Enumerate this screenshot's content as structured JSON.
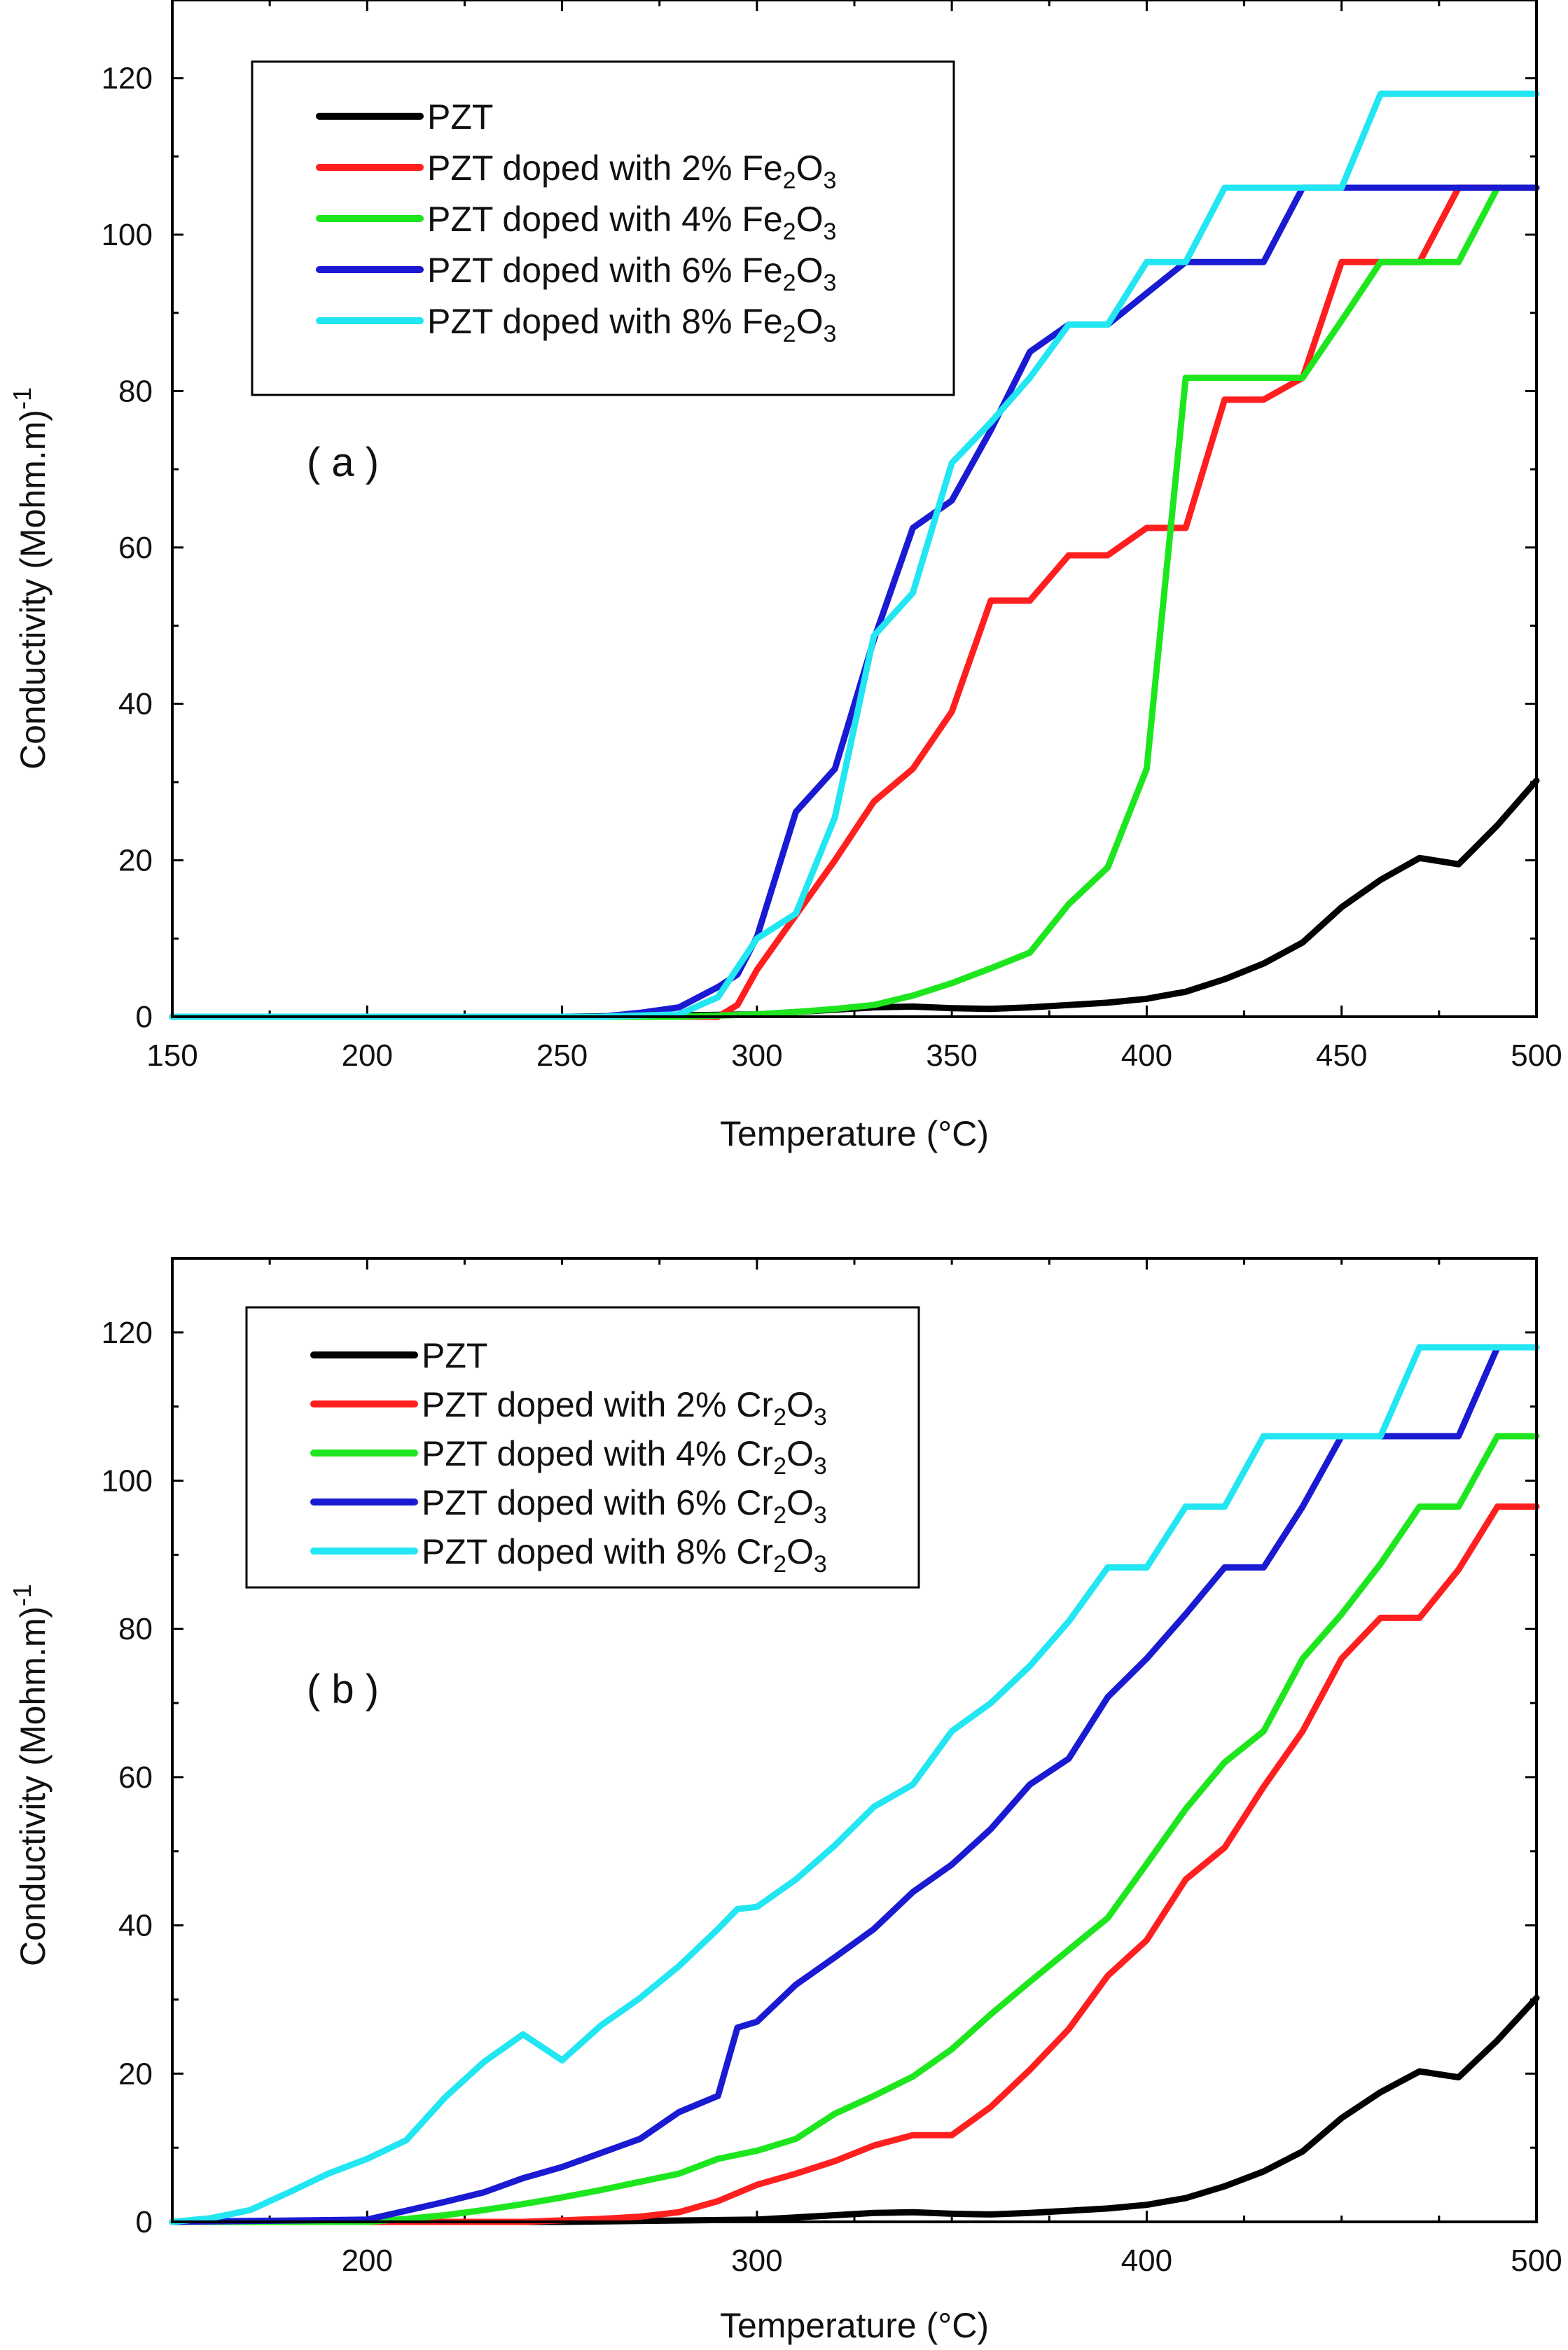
{
  "chart_data": [
    {
      "type": "line",
      "panel_label": "( a )",
      "xlabel": "Temperature (°C)",
      "ylabel": "Conductivity (Mohm.m)",
      "ylabel_sup": "-1",
      "xlim": [
        150,
        500
      ],
      "ylim": [
        0,
        130
      ],
      "xticks": [
        150,
        200,
        250,
        300,
        350,
        400,
        450,
        500
      ],
      "yticks": [
        0,
        20,
        40,
        60,
        80,
        100,
        120
      ],
      "legend_position": "top-left",
      "series": [
        {
          "name": "PZT",
          "label_main": "PZT",
          "color": "#000000",
          "x": [
            150,
            250,
            300,
            310,
            320,
            330,
            340,
            350,
            360,
            370,
            380,
            390,
            400,
            410,
            420,
            430,
            440,
            450,
            460,
            470,
            480,
            490,
            500
          ],
          "y": [
            0,
            0,
            0.3,
            0.6,
            0.9,
            1.2,
            1.3,
            1.1,
            1.0,
            1.2,
            1.5,
            1.8,
            2.3,
            3.2,
            4.8,
            6.8,
            9.5,
            14,
            17.5,
            20.3,
            19.5,
            24.5,
            30.2
          ]
        },
        {
          "name": "PZT doped with 2% Fe2O3",
          "label_main": "PZT doped with 2% Fe",
          "label_sub1": "2",
          "label_mid": "O",
          "label_sub2": "3",
          "color": "#ff1f1f",
          "x": [
            150,
            290,
            295,
            300,
            310,
            320,
            330,
            340,
            350,
            360,
            370,
            380,
            390,
            400,
            410,
            420,
            430,
            440,
            450,
            460,
            470,
            480,
            490,
            500
          ],
          "y": [
            0,
            0,
            1.5,
            6,
            13,
            20,
            27.5,
            31.7,
            39,
            53.2,
            53.2,
            59,
            59,
            62.5,
            62.5,
            78.9,
            78.9,
            81.7,
            96.5,
            96.5,
            96.5,
            106,
            106,
            106
          ]
        },
        {
          "name": "PZT doped with 4% Fe2O3",
          "label_main": "PZT doped with 4% Fe",
          "label_sub1": "2",
          "label_mid": "O",
          "label_sub2": "3",
          "color": "#1ee61e",
          "x": [
            150,
            280,
            300,
            310,
            320,
            330,
            340,
            350,
            360,
            370,
            380,
            390,
            400,
            410,
            420,
            430,
            440,
            450,
            460,
            470,
            480,
            490,
            500
          ],
          "y": [
            0,
            0,
            0.3,
            0.6,
            1.0,
            1.5,
            2.7,
            4.3,
            6.2,
            8.2,
            14.4,
            19.1,
            31.7,
            81.7,
            81.7,
            81.7,
            81.7,
            89,
            96.5,
            96.5,
            96.5,
            106,
            106
          ]
        },
        {
          "name": "PZT doped with 6% Fe2O3",
          "label_main": "PZT doped with 6% Fe",
          "label_sub1": "2",
          "label_mid": "O",
          "label_sub2": "3",
          "color": "#1a1ad2",
          "x": [
            150,
            260,
            270,
            280,
            290,
            295,
            300,
            310,
            320,
            330,
            340,
            350,
            360,
            370,
            380,
            390,
            400,
            410,
            420,
            430,
            440,
            450,
            460,
            470,
            480,
            490,
            500
          ],
          "y": [
            0,
            0,
            0.5,
            1.2,
            3.8,
            5.4,
            10.2,
            26.2,
            31.7,
            48.2,
            62.5,
            66,
            75,
            85,
            88.5,
            88.5,
            92.5,
            96.5,
            96.5,
            96.5,
            106,
            106,
            106,
            106,
            106,
            106,
            106
          ]
        },
        {
          "name": "PZT doped with 8% Fe2O3",
          "label_main": "PZT doped with 8% Fe",
          "label_sub1": "2",
          "label_mid": "O",
          "label_sub2": "3",
          "color": "#22e6f2",
          "x": [
            150,
            260,
            280,
            290,
            300,
            310,
            320,
            330,
            340,
            350,
            360,
            370,
            380,
            390,
            400,
            410,
            420,
            430,
            440,
            450,
            460,
            470,
            480,
            490,
            500
          ],
          "y": [
            0,
            0,
            0.3,
            2.5,
            10,
            13.2,
            25.5,
            48.7,
            54.2,
            70.8,
            76,
            81.7,
            88.5,
            88.5,
            96.5,
            96.5,
            106,
            106,
            106,
            106,
            118,
            118,
            118,
            118,
            118
          ]
        }
      ]
    },
    {
      "type": "line",
      "panel_label": "( b )",
      "xlabel": "Temperature (°C)",
      "ylabel": "Conductivity (Mohm.m)",
      "ylabel_sup": "-1",
      "xlim": [
        150,
        500
      ],
      "ylim": [
        0,
        130
      ],
      "xticks": [
        200,
        300,
        400,
        500
      ],
      "yticks": [
        0,
        20,
        40,
        60,
        80,
        100,
        120
      ],
      "legend_position": "top-left",
      "series": [
        {
          "name": "PZT",
          "label_main": "PZT",
          "color": "#000000",
          "x": [
            150,
            250,
            300,
            310,
            320,
            330,
            340,
            350,
            360,
            370,
            380,
            390,
            400,
            410,
            420,
            430,
            440,
            450,
            460,
            470,
            480,
            490,
            500
          ],
          "y": [
            0,
            0,
            0.3,
            0.6,
            0.9,
            1.2,
            1.3,
            1.1,
            1.0,
            1.2,
            1.5,
            1.8,
            2.3,
            3.2,
            4.8,
            6.8,
            9.5,
            14,
            17.5,
            20.3,
            19.5,
            24.5,
            30.2
          ]
        },
        {
          "name": "PZT doped with 2% Cr2O3",
          "label_main": "PZT doped with 2% Cr",
          "label_sub1": "2",
          "label_mid": "O",
          "label_sub2": "3",
          "color": "#ff1f1f",
          "x": [
            150,
            240,
            250,
            260,
            270,
            280,
            290,
            300,
            310,
            320,
            330,
            340,
            350,
            360,
            370,
            380,
            390,
            400,
            410,
            420,
            430,
            440,
            450,
            460,
            470,
            480,
            490,
            500
          ],
          "y": [
            0,
            0,
            0.2,
            0.4,
            0.7,
            1.3,
            2.8,
            5,
            6.5,
            8.2,
            10.3,
            11.7,
            11.7,
            15.5,
            20.5,
            26,
            33.2,
            38,
            46.2,
            50.5,
            58.7,
            66.2,
            76,
            81.5,
            81.5,
            88,
            96.5,
            96.5
          ]
        },
        {
          "name": "PZT doped with 4% Cr2O3",
          "label_main": "PZT doped with 4% Cr",
          "label_sub1": "2",
          "label_mid": "O",
          "label_sub2": "3",
          "color": "#1ee61e",
          "x": [
            150,
            200,
            210,
            220,
            230,
            240,
            250,
            260,
            270,
            280,
            290,
            300,
            310,
            320,
            330,
            340,
            350,
            360,
            370,
            380,
            390,
            400,
            410,
            420,
            430,
            440,
            450,
            460,
            470,
            480,
            490,
            500
          ],
          "y": [
            0,
            0,
            0.4,
            0.9,
            1.6,
            2.4,
            3.3,
            4.3,
            5.4,
            6.5,
            8.5,
            9.6,
            11.2,
            14.6,
            17,
            19.6,
            23.3,
            28,
            32.4,
            36.7,
            41,
            48.3,
            55.7,
            62,
            66.2,
            76,
            82,
            88.8,
            96.5,
            96.5,
            106,
            106
          ]
        },
        {
          "name": "PZT doped with 6% Cr2O3",
          "label_main": "PZT doped with 6% Cr",
          "label_sub1": "2",
          "label_mid": "O",
          "label_sub2": "3",
          "color": "#1a1ad2",
          "x": [
            150,
            200,
            210,
            220,
            230,
            240,
            250,
            260,
            270,
            280,
            290,
            295,
            300,
            310,
            320,
            330,
            340,
            350,
            360,
            370,
            380,
            390,
            400,
            410,
            420,
            430,
            440,
            450,
            460,
            470,
            480,
            490,
            500
          ],
          "y": [
            0,
            0.3,
            1.5,
            2.7,
            4,
            5.9,
            7.4,
            9.3,
            11.2,
            14.8,
            17,
            26.2,
            27,
            32,
            35.7,
            39.5,
            44.5,
            48.2,
            53,
            59,
            62.5,
            70.8,
            76,
            82,
            88.3,
            88.3,
            96.5,
            106,
            106,
            106,
            106,
            118,
            118
          ]
        },
        {
          "name": "PZT doped with 8% Cr2O3",
          "label_main": "PZT doped with 8% Cr",
          "label_sub1": "2",
          "label_mid": "O",
          "label_sub2": "3",
          "color": "#22e6f2",
          "x": [
            150,
            160,
            170,
            180,
            190,
            200,
            210,
            220,
            230,
            240,
            250,
            260,
            270,
            280,
            290,
            295,
            300,
            310,
            320,
            330,
            340,
            350,
            360,
            370,
            380,
            390,
            400,
            410,
            420,
            430,
            440,
            450,
            460,
            470,
            480,
            490,
            500
          ],
          "y": [
            0,
            0.5,
            1.6,
            4,
            6.5,
            8.5,
            11,
            16.8,
            21.6,
            25.3,
            21.8,
            26.5,
            30.2,
            34.5,
            39.5,
            42.2,
            42.5,
            46.2,
            50.8,
            56,
            59,
            66.2,
            70,
            75,
            81,
            88.3,
            88.3,
            96.5,
            96.5,
            106,
            106,
            106,
            106,
            118,
            118,
            118,
            118
          ]
        }
      ]
    }
  ]
}
